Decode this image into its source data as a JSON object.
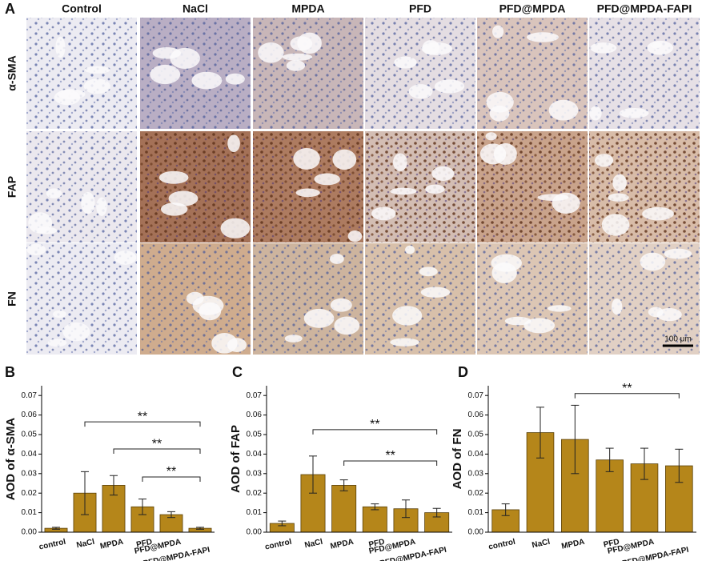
{
  "panel_a": {
    "letter": "A",
    "columns": [
      "Control",
      "NaCl",
      "MPDA",
      "PFD",
      "PFD@MPDA",
      "PFD@MPDA-FAPI"
    ],
    "rows": [
      "α-SMA",
      "FAP",
      "FN"
    ],
    "scale_bar": "100 μm"
  },
  "chart_data": [
    {
      "type": "bar",
      "panel": "B",
      "y_label": "AOD of α-SMA",
      "color": "#b5861a",
      "categories": [
        "control",
        "NaCl",
        "MPDA",
        "PFD",
        "PFD@MPDA",
        "PFD@MPDA-FAPI"
      ],
      "values": [
        0.002,
        0.02,
        0.024,
        0.013,
        0.009,
        0.002
      ],
      "errors": [
        0.0005,
        0.011,
        0.005,
        0.004,
        0.0015,
        0.0005
      ],
      "ylim": [
        0,
        0.075
      ],
      "yticks": [
        {
          "value": 0,
          "label": "0.00"
        },
        {
          "value": 0.01,
          "label": "0.01"
        },
        {
          "value": 0.02,
          "label": "0.02"
        },
        {
          "value": 0.03,
          "label": "0.03"
        },
        {
          "value": 0.04,
          "label": "0.04"
        },
        {
          "value": 0.05,
          "label": "0.05"
        },
        {
          "value": 0.06,
          "label": "0.06"
        },
        {
          "value": 0.07,
          "label": "0.07"
        }
      ],
      "annotations": [
        {
          "from": "NaCl",
          "to": "PFD@MPDA-FAPI",
          "y": 0.0565,
          "label": "**"
        },
        {
          "from": "MPDA",
          "to": "PFD@MPDA-FAPI",
          "y": 0.0426,
          "label": "**"
        },
        {
          "from": "PFD",
          "to": "PFD@MPDA-FAPI",
          "y": 0.0283,
          "label": "**"
        }
      ]
    },
    {
      "type": "bar",
      "panel": "C",
      "y_label": "AOD of FAP",
      "color": "#b5861a",
      "categories": [
        "control",
        "NaCl",
        "MPDA",
        "PFD",
        "PFD@MPDA",
        "PFD@MPDA-FAPI"
      ],
      "values": [
        0.0045,
        0.0295,
        0.024,
        0.013,
        0.012,
        0.01
      ],
      "errors": [
        0.0012,
        0.0095,
        0.0028,
        0.0015,
        0.0045,
        0.0022
      ],
      "ylim": [
        0,
        0.075
      ],
      "yticks": [
        {
          "value": 0,
          "label": "0.00"
        },
        {
          "value": 0.01,
          "label": "0.01"
        },
        {
          "value": 0.02,
          "label": "0.02"
        },
        {
          "value": 0.03,
          "label": "0.03"
        },
        {
          "value": 0.04,
          "label": "0.04"
        },
        {
          "value": 0.05,
          "label": "0.05"
        },
        {
          "value": 0.06,
          "label": "0.06"
        },
        {
          "value": 0.07,
          "label": "0.07"
        }
      ],
      "annotations": [
        {
          "from": "NaCl",
          "to": "PFD@MPDA-FAPI",
          "y": 0.0525,
          "label": "**"
        },
        {
          "from": "MPDA",
          "to": "PFD@MPDA-FAPI",
          "y": 0.0365,
          "label": "**"
        }
      ]
    },
    {
      "type": "bar",
      "panel": "D",
      "y_label": "AOD of FN",
      "color": "#b5861a",
      "categories": [
        "control",
        "NaCl",
        "MPDA",
        "PFD",
        "PFD@MPDA",
        "PFD@MPDA-FAPI"
      ],
      "values": [
        0.0115,
        0.051,
        0.0475,
        0.037,
        0.035,
        0.034
      ],
      "errors": [
        0.003,
        0.013,
        0.0175,
        0.006,
        0.008,
        0.0085
      ],
      "ylim": [
        0,
        0.075
      ],
      "yticks": [
        {
          "value": 0,
          "label": "0.00"
        },
        {
          "value": 0.01,
          "label": "0.01"
        },
        {
          "value": 0.02,
          "label": "0.02"
        },
        {
          "value": 0.03,
          "label": "0.03"
        },
        {
          "value": 0.04,
          "label": "0.04"
        },
        {
          "value": 0.05,
          "label": "0.05"
        },
        {
          "value": 0.06,
          "label": "0.06"
        },
        {
          "value": 0.07,
          "label": "0.07"
        }
      ],
      "annotations": [
        {
          "from": "MPDA",
          "to": "PFD@MPDA-FAPI",
          "y": 0.071,
          "label": "**"
        }
      ]
    }
  ]
}
